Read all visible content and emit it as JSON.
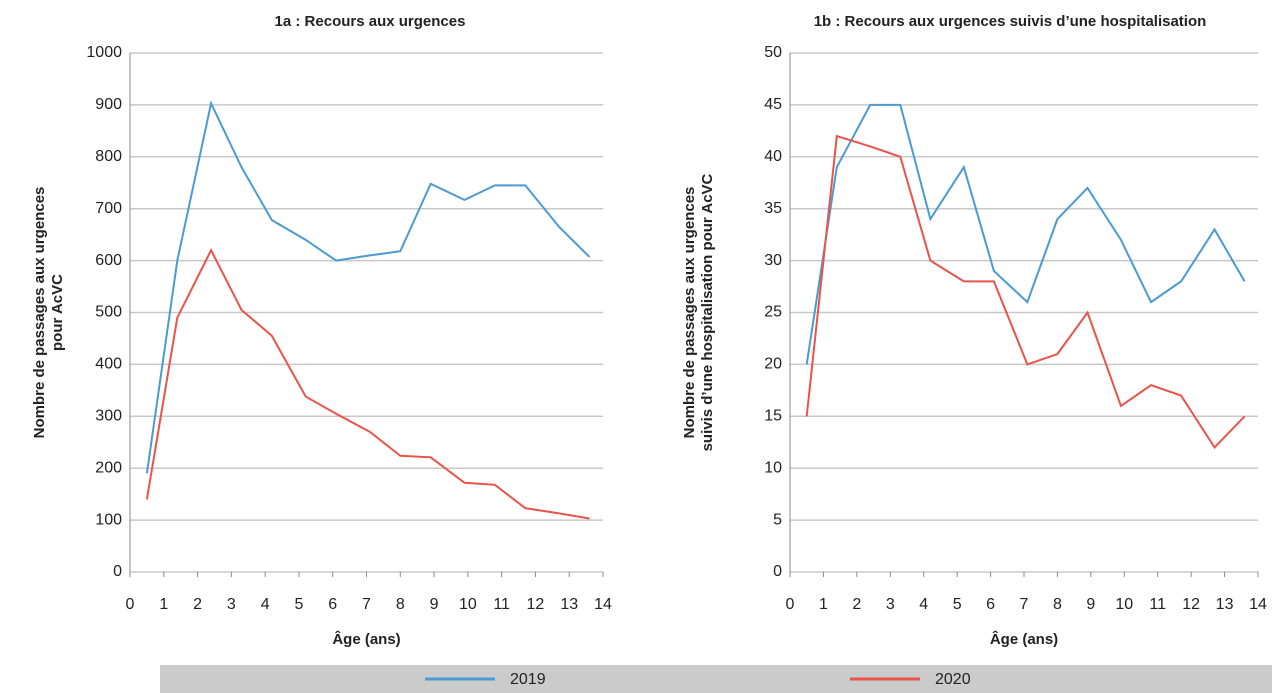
{
  "chart_data": [
    {
      "type": "line",
      "title": "1a : Recours aux urgences",
      "xlabel": "Âge (ans)",
      "ylabel": [
        "Nombre de passages aux urgences",
        "pour AcVC"
      ],
      "x": [
        0.5,
        1.4,
        2.4,
        3.3,
        4.2,
        5.2,
        6.1,
        7.1,
        8,
        8.9,
        9.9,
        10.8,
        11.7,
        12.7,
        13.6
      ],
      "series": [
        {
          "name": "2019",
          "color": "#4a9bd1",
          "values": [
            190,
            600,
            903,
            780,
            678,
            640,
            600,
            610,
            618,
            748,
            717,
            745,
            745,
            665,
            607
          ]
        },
        {
          "name": "2020",
          "color": "#e8534a",
          "values": [
            140,
            490,
            620,
            505,
            455,
            338,
            305,
            270,
            224,
            221,
            172,
            168,
            123,
            113,
            103
          ]
        }
      ],
      "xlim": [
        0,
        14
      ],
      "xticks": [
        0,
        1,
        2,
        3,
        4,
        5,
        6,
        7,
        8,
        9,
        10,
        11,
        12,
        13,
        14
      ],
      "ylim": [
        0,
        1000
      ],
      "yticks": [
        0,
        100,
        200,
        300,
        400,
        500,
        600,
        700,
        800,
        900,
        1000
      ],
      "grid": true
    },
    {
      "type": "line",
      "title": "1b : Recours aux urgences suivis d’une hospitalisation",
      "xlabel": "Âge (ans)",
      "ylabel": [
        "Nombre de passages aux urgences",
        "suivis d’une hospitalisation pour AcVC"
      ],
      "x": [
        0.5,
        1.4,
        2.4,
        3.3,
        4.2,
        5.2,
        6.1,
        7.1,
        8,
        8.9,
        9.9,
        10.8,
        11.7,
        12.7,
        13.6
      ],
      "series": [
        {
          "name": "2019",
          "color": "#4a9bd1",
          "values": [
            20,
            39,
            45,
            45,
            34,
            39,
            29,
            26,
            34,
            37,
            32,
            26,
            28,
            33,
            28
          ]
        },
        {
          "name": "2020",
          "color": "#e8534a",
          "values": [
            15,
            42,
            41,
            40,
            30,
            28,
            28,
            20,
            21,
            25,
            16,
            18,
            17,
            12,
            15
          ]
        }
      ],
      "xlim": [
        0,
        14
      ],
      "xticks": [
        0,
        1,
        2,
        3,
        4,
        5,
        6,
        7,
        8,
        9,
        10,
        11,
        12,
        13,
        14
      ],
      "ylim": [
        0,
        50
      ],
      "yticks": [
        0,
        5,
        10,
        15,
        20,
        25,
        30,
        35,
        40,
        45,
        50
      ],
      "grid": true
    }
  ]
}
